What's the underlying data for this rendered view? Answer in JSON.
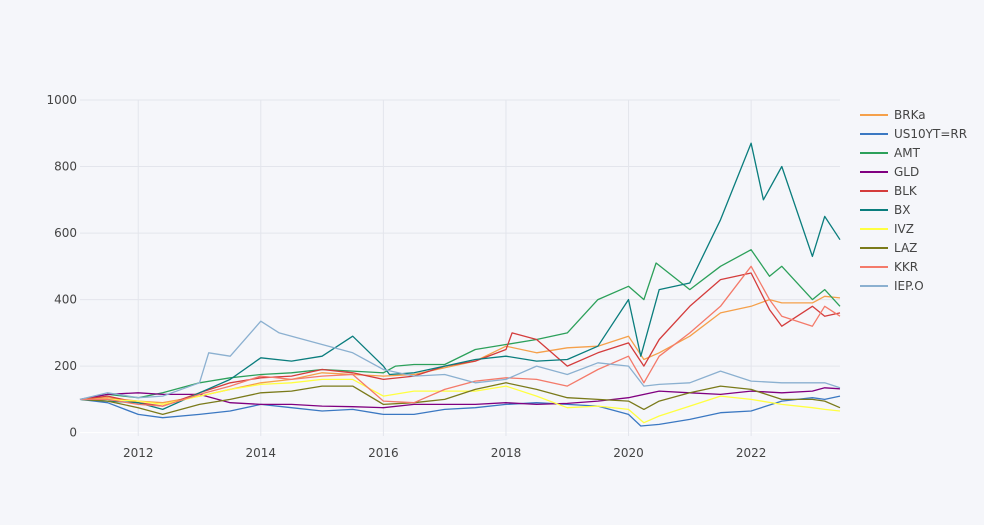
{
  "chart_data": {
    "type": "line",
    "title": "",
    "xlabel": "",
    "ylabel": "",
    "xlim": [
      2011.05,
      2023.45
    ],
    "ylim": [
      -10,
      1000
    ],
    "grid": true,
    "legend_position": "right",
    "x_ticks": [
      {
        "value": 2012,
        "label": "2012"
      },
      {
        "value": 2014,
        "label": "2014"
      },
      {
        "value": 2016,
        "label": "2016"
      },
      {
        "value": 2018,
        "label": "2018"
      },
      {
        "value": 2020,
        "label": "2020"
      },
      {
        "value": 2022,
        "label": "2022"
      }
    ],
    "y_ticks": [
      {
        "value": 0,
        "label": "0"
      },
      {
        "value": 200,
        "label": "200"
      },
      {
        "value": 400,
        "label": "400"
      },
      {
        "value": 600,
        "label": "600"
      },
      {
        "value": 800,
        "label": "800"
      },
      {
        "value": 1000,
        "label": "1000"
      }
    ],
    "series": [
      {
        "name": "BRKa",
        "color": "#f5a04a",
        "x": [
          2011.05,
          2011.5,
          2012.0,
          2012.4,
          2013.0,
          2013.5,
          2014.0,
          2014.5,
          2015.0,
          2015.5,
          2016.0,
          2016.5,
          2017.0,
          2017.5,
          2018.0,
          2018.5,
          2019.0,
          2019.5,
          2020.0,
          2020.25,
          2020.5,
          2021.0,
          2021.5,
          2022.0,
          2022.3,
          2022.5,
          2023.0,
          2023.2,
          2023.45
        ],
        "y": [
          100,
          105,
          95,
          90,
          110,
          130,
          150,
          160,
          180,
          175,
          170,
          175,
          195,
          215,
          260,
          240,
          255,
          260,
          290,
          220,
          240,
          290,
          360,
          380,
          400,
          390,
          390,
          410,
          405
        ]
      },
      {
        "name": "US10YT=RR",
        "color": "#3b78c2",
        "x": [
          2011.05,
          2011.5,
          2012.0,
          2012.4,
          2013.0,
          2013.5,
          2014.0,
          2014.5,
          2015.0,
          2015.5,
          2016.0,
          2016.5,
          2017.0,
          2017.5,
          2018.0,
          2018.5,
          2019.0,
          2019.5,
          2020.0,
          2020.2,
          2020.5,
          2021.0,
          2021.5,
          2022.0,
          2022.5,
          2023.0,
          2023.2,
          2023.45
        ],
        "y": [
          100,
          90,
          55,
          45,
          55,
          65,
          85,
          75,
          65,
          70,
          55,
          55,
          70,
          75,
          85,
          90,
          85,
          80,
          55,
          20,
          25,
          40,
          60,
          65,
          95,
          105,
          100,
          110
        ]
      },
      {
        "name": "AMT",
        "color": "#2ca05a",
        "x": [
          2011.05,
          2011.5,
          2012.0,
          2012.4,
          2013.0,
          2013.5,
          2014.0,
          2014.5,
          2015.0,
          2015.5,
          2016.0,
          2016.2,
          2016.5,
          2017.0,
          2017.5,
          2018.0,
          2018.5,
          2019.0,
          2019.5,
          2020.0,
          2020.25,
          2020.45,
          2021.0,
          2021.5,
          2022.0,
          2022.3,
          2022.5,
          2023.0,
          2023.2,
          2023.45
        ],
        "y": [
          100,
          115,
          105,
          120,
          150,
          165,
          175,
          180,
          190,
          185,
          180,
          200,
          205,
          205,
          250,
          265,
          280,
          300,
          400,
          440,
          400,
          510,
          430,
          500,
          550,
          470,
          500,
          400,
          430,
          380
        ]
      },
      {
        "name": "GLD",
        "color": "#800080",
        "x": [
          2011.05,
          2011.5,
          2012.0,
          2012.4,
          2013.0,
          2013.5,
          2014.0,
          2014.5,
          2015.0,
          2015.5,
          2016.0,
          2016.5,
          2017.0,
          2017.5,
          2018.0,
          2018.5,
          2019.0,
          2019.5,
          2020.0,
          2020.5,
          2021.0,
          2021.5,
          2022.0,
          2022.5,
          2023.0,
          2023.2,
          2023.45
        ],
        "y": [
          100,
          115,
          120,
          115,
          115,
          90,
          85,
          85,
          80,
          78,
          75,
          85,
          85,
          85,
          90,
          85,
          88,
          95,
          105,
          125,
          120,
          115,
          125,
          120,
          125,
          135,
          132
        ]
      },
      {
        "name": "BLK",
        "color": "#d43c3c",
        "x": [
          2011.05,
          2011.5,
          2012.0,
          2012.4,
          2013.0,
          2013.5,
          2014.0,
          2014.5,
          2015.0,
          2015.5,
          2016.0,
          2016.5,
          2017.0,
          2017.5,
          2018.0,
          2018.1,
          2018.5,
          2019.0,
          2019.5,
          2020.0,
          2020.25,
          2020.5,
          2021.0,
          2021.5,
          2022.0,
          2022.3,
          2022.5,
          2023.0,
          2023.2,
          2023.45
        ],
        "y": [
          100,
          110,
          90,
          80,
          120,
          150,
          165,
          170,
          190,
          180,
          160,
          170,
          200,
          215,
          250,
          300,
          280,
          200,
          240,
          270,
          200,
          280,
          380,
          460,
          480,
          370,
          320,
          380,
          350,
          360
        ]
      },
      {
        "name": "BX",
        "color": "#0a7d7d",
        "x": [
          2011.05,
          2011.5,
          2012.0,
          2012.4,
          2013.0,
          2013.5,
          2014.0,
          2014.5,
          2015.0,
          2015.5,
          2016.0,
          2016.1,
          2016.5,
          2017.0,
          2017.5,
          2018.0,
          2018.5,
          2019.0,
          2019.5,
          2020.0,
          2020.2,
          2020.5,
          2021.0,
          2021.5,
          2022.0,
          2022.2,
          2022.5,
          2023.0,
          2023.2,
          2023.45
        ],
        "y": [
          100,
          95,
          90,
          70,
          120,
          160,
          225,
          215,
          230,
          290,
          200,
          175,
          180,
          200,
          220,
          230,
          215,
          220,
          260,
          400,
          230,
          430,
          450,
          640,
          870,
          700,
          800,
          530,
          650,
          580
        ]
      },
      {
        "name": "IVZ",
        "color": "#ffff40",
        "x": [
          2011.05,
          2011.5,
          2012.0,
          2012.4,
          2013.0,
          2013.5,
          2014.0,
          2014.5,
          2015.0,
          2015.5,
          2016.0,
          2016.5,
          2017.0,
          2017.5,
          2018.0,
          2018.5,
          2019.0,
          2019.5,
          2020.0,
          2020.25,
          2020.5,
          2021.0,
          2021.5,
          2022.0,
          2022.5,
          2023.0,
          2023.2,
          2023.45
        ],
        "y": [
          100,
          100,
          95,
          85,
          110,
          130,
          145,
          150,
          160,
          160,
          110,
          125,
          125,
          125,
          140,
          110,
          75,
          80,
          70,
          30,
          50,
          80,
          110,
          100,
          85,
          75,
          70,
          65
        ]
      },
      {
        "name": "LAZ",
        "color": "#7a7a1a",
        "x": [
          2011.05,
          2011.5,
          2012.0,
          2012.4,
          2013.0,
          2013.5,
          2014.0,
          2014.5,
          2015.0,
          2015.5,
          2016.0,
          2016.5,
          2017.0,
          2017.5,
          2018.0,
          2018.5,
          2019.0,
          2019.5,
          2020.0,
          2020.25,
          2020.5,
          2021.0,
          2021.5,
          2022.0,
          2022.5,
          2023.0,
          2023.2,
          2023.45
        ],
        "y": [
          100,
          95,
          75,
          55,
          85,
          100,
          120,
          125,
          140,
          140,
          85,
          90,
          100,
          130,
          150,
          130,
          105,
          100,
          95,
          70,
          95,
          120,
          140,
          130,
          100,
          100,
          95,
          75
        ]
      },
      {
        "name": "KKR",
        "color": "#f47a6a",
        "x": [
          2011.05,
          2011.5,
          2012.0,
          2012.4,
          2013.0,
          2013.5,
          2014.0,
          2014.5,
          2015.0,
          2015.5,
          2016.0,
          2016.5,
          2017.0,
          2017.5,
          2018.0,
          2018.5,
          2019.0,
          2019.5,
          2020.0,
          2020.25,
          2020.5,
          2021.0,
          2021.5,
          2022.0,
          2022.3,
          2022.5,
          2023.0,
          2023.2,
          2023.45
        ],
        "y": [
          100,
          100,
          85,
          80,
          115,
          140,
          170,
          160,
          170,
          175,
          95,
          90,
          130,
          155,
          165,
          160,
          140,
          190,
          230,
          150,
          230,
          300,
          380,
          500,
          400,
          350,
          320,
          380,
          350
        ]
      },
      {
        "name": "IEP.O",
        "color": "#8bb0d0",
        "x": [
          2011.05,
          2011.5,
          2012.0,
          2012.4,
          2013.0,
          2013.15,
          2013.5,
          2014.0,
          2014.3,
          2014.6,
          2015.0,
          2015.5,
          2016.0,
          2016.5,
          2017.0,
          2017.5,
          2018.0,
          2018.5,
          2019.0,
          2019.5,
          2020.0,
          2020.25,
          2020.5,
          2021.0,
          2021.5,
          2022.0,
          2022.5,
          2023.0,
          2023.2,
          2023.45
        ],
        "y": [
          100,
          120,
          105,
          110,
          150,
          240,
          230,
          335,
          300,
          285,
          265,
          240,
          190,
          170,
          175,
          150,
          160,
          200,
          175,
          210,
          200,
          140,
          145,
          150,
          185,
          155,
          150,
          150,
          150,
          135
        ]
      }
    ]
  }
}
